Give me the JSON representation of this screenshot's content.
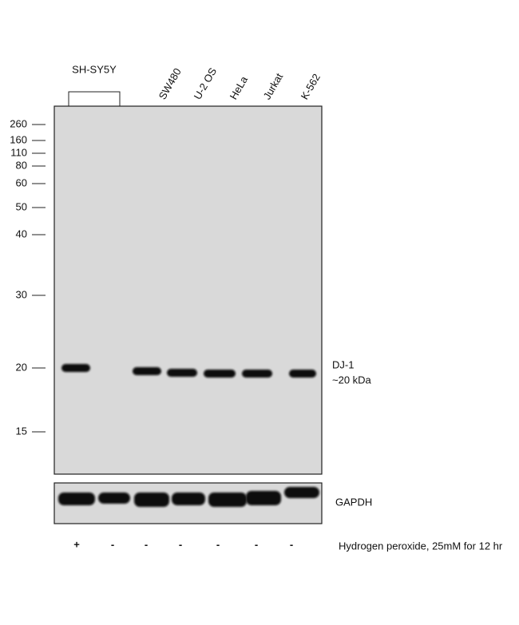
{
  "header": {
    "cell_line_group": "SH-SY5Y",
    "lanes": [
      "SW480",
      "U-2 OS",
      "HeLa",
      "Jurkat",
      "K-562"
    ]
  },
  "markers": [
    "260",
    "160",
    "110",
    "80",
    "60",
    "50",
    "40",
    "30",
    "20",
    "15"
  ],
  "bands": {
    "target": "DJ-1",
    "target_size": "~20 kDa",
    "loading_control": "GAPDH"
  },
  "treatment": {
    "signs": [
      "+",
      "-",
      "-",
      "-",
      "-",
      "-",
      "-"
    ],
    "label": "Hydrogen peroxide, 25mM for 12 hr"
  }
}
